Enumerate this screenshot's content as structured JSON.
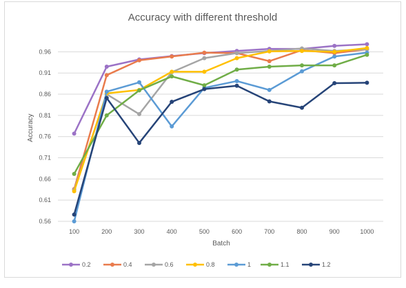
{
  "chart_data": {
    "type": "line",
    "title": "Accuracy with different threshold",
    "xlabel": "Batch",
    "ylabel": "Accuracy",
    "x": [
      "100",
      "200",
      "300",
      "400",
      "500",
      "600",
      "700",
      "800",
      "900",
      "1000"
    ],
    "yticks": [
      "0.96",
      "0.91",
      "0.86",
      "0.81",
      "0.76",
      "0.71",
      "0.66",
      "0.61",
      "0.56"
    ],
    "ylim": [
      0.56,
      0.985
    ],
    "grid": true,
    "legend_position": "bottom",
    "series": [
      {
        "name": "0.2",
        "color": "#9B72C6",
        "values": [
          0.767,
          0.925,
          0.942,
          0.95,
          0.957,
          0.962,
          0.967,
          0.967,
          0.974,
          0.978
        ]
      },
      {
        "name": "0.4",
        "color": "#E97B4C",
        "values": [
          0.636,
          0.905,
          0.94,
          0.949,
          0.958,
          0.957,
          0.938,
          0.964,
          0.957,
          0.966
        ]
      },
      {
        "name": "0.6",
        "color": "#A5A5A5",
        "values": [
          0.634,
          0.86,
          0.813,
          0.912,
          0.945,
          0.957,
          0.962,
          0.968,
          0.962,
          0.966
        ]
      },
      {
        "name": "0.8",
        "color": "#FFC000",
        "values": [
          0.631,
          0.862,
          0.87,
          0.913,
          0.913,
          0.945,
          0.961,
          0.962,
          0.96,
          0.969
        ]
      },
      {
        "name": "1",
        "color": "#5B9BD5",
        "values": [
          0.56,
          0.866,
          0.888,
          0.784,
          0.875,
          0.891,
          0.87,
          0.914,
          0.949,
          0.958
        ]
      },
      {
        "name": "1.1",
        "color": "#70AD47",
        "values": [
          0.672,
          0.81,
          0.869,
          0.902,
          0.881,
          0.918,
          0.925,
          0.928,
          0.928,
          0.953
        ]
      },
      {
        "name": "1.2",
        "color": "#264478",
        "values": [
          0.576,
          0.851,
          0.745,
          0.842,
          0.872,
          0.88,
          0.843,
          0.828,
          0.886,
          0.887
        ]
      }
    ]
  }
}
